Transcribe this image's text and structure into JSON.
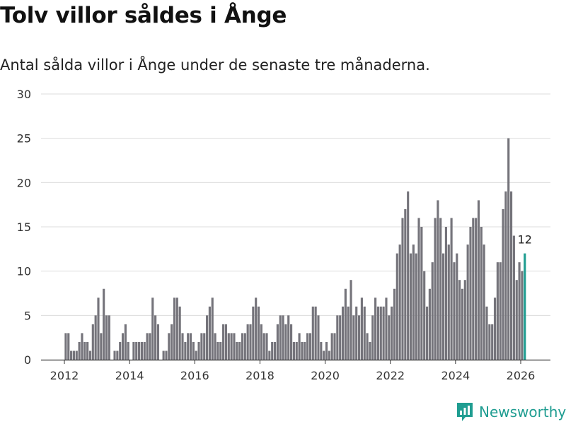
{
  "title": "Tolv villor såldes i Ånge",
  "subtitle": "Antal sålda villor i Ånge under de senaste tre månaderna.",
  "brand": "Newsworthy",
  "colors": {
    "bar": "#75747b",
    "highlight": "#1f9d91",
    "grid": "#dcdcdc",
    "text": "#333333"
  },
  "chart_data": {
    "type": "bar",
    "title": "Tolv villor såldes i Ånge",
    "xlabel": "",
    "ylabel": "",
    "ylim": [
      0,
      30
    ],
    "yticks": [
      0,
      5,
      10,
      15,
      20,
      25,
      30
    ],
    "xticks": [
      "2012",
      "2014",
      "2016",
      "2018",
      "2020",
      "2022",
      "2024",
      "2026"
    ],
    "start": "2012-01",
    "highlight_label": "12",
    "values": [
      3,
      3,
      1,
      1,
      1,
      2,
      3,
      2,
      2,
      1,
      4,
      5,
      7,
      3,
      8,
      5,
      5,
      0,
      1,
      1,
      2,
      3,
      4,
      2,
      0,
      2,
      2,
      2,
      2,
      2,
      3,
      3,
      7,
      5,
      4,
      0,
      1,
      1,
      3,
      4,
      7,
      7,
      6,
      3,
      2,
      3,
      3,
      2,
      1,
      2,
      3,
      3,
      5,
      6,
      7,
      3,
      2,
      2,
      4,
      4,
      3,
      3,
      3,
      2,
      2,
      3,
      3,
      4,
      4,
      6,
      7,
      6,
      4,
      3,
      3,
      1,
      2,
      2,
      4,
      5,
      5,
      4,
      5,
      4,
      2,
      2,
      3,
      2,
      2,
      3,
      3,
      6,
      6,
      5,
      2,
      1,
      2,
      1,
      3,
      3,
      5,
      5,
      6,
      8,
      6,
      9,
      5,
      6,
      5,
      7,
      6,
      3,
      2,
      5,
      7,
      6,
      6,
      6,
      7,
      5,
      6,
      8,
      12,
      13,
      16,
      17,
      19,
      12,
      13,
      12,
      16,
      15,
      10,
      6,
      8,
      11,
      16,
      18,
      16,
      12,
      15,
      13,
      16,
      11,
      12,
      9,
      8,
      9,
      13,
      15,
      16,
      16,
      18,
      15,
      13,
      6,
      4,
      4,
      7,
      11,
      11,
      17,
      19,
      25,
      19,
      14,
      9,
      11,
      10,
      12
    ]
  }
}
